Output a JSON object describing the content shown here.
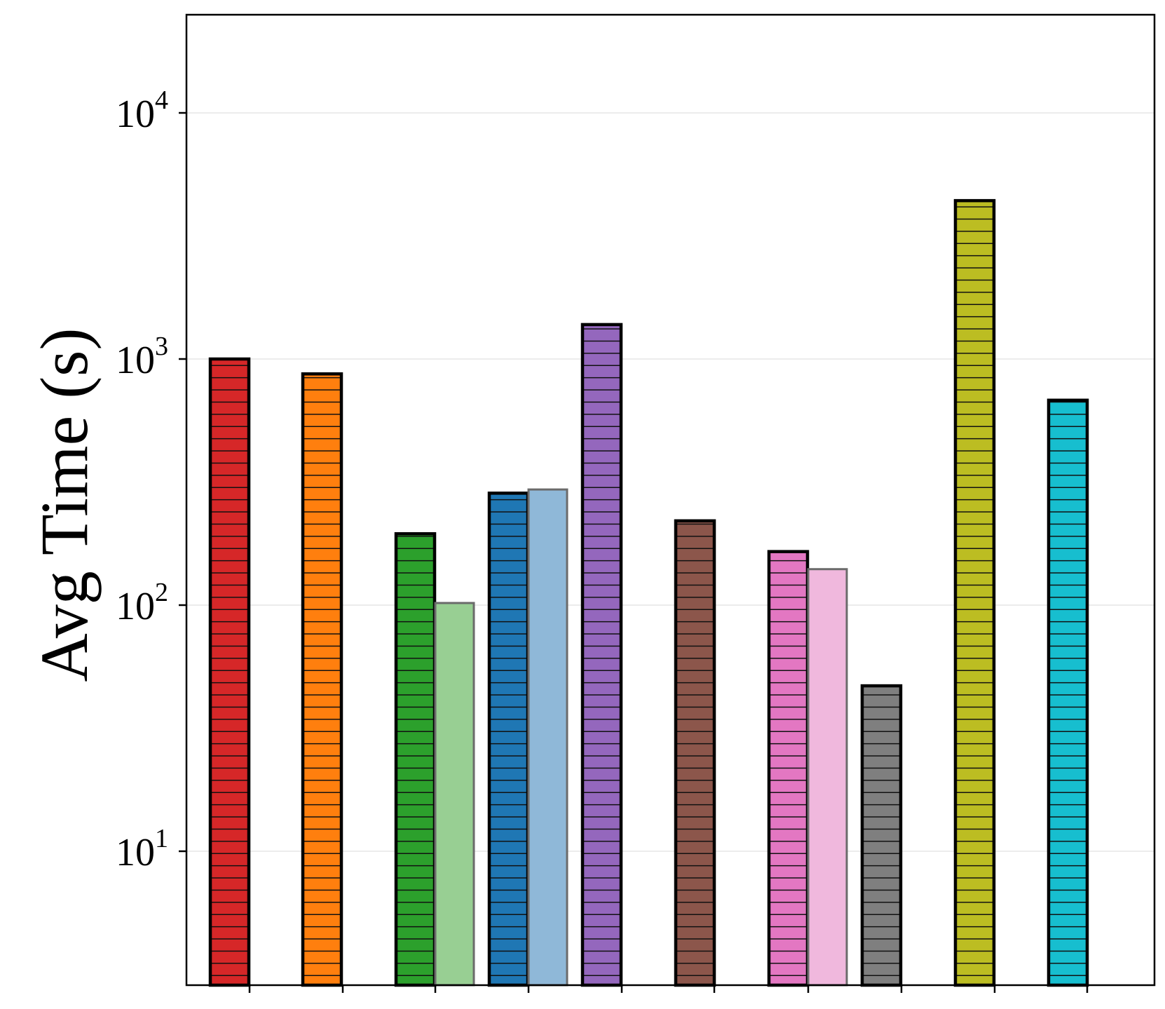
{
  "chart_data": {
    "type": "bar",
    "title": "",
    "xlabel": "",
    "ylabel": "Avg Time (s)",
    "yscale": "log",
    "ylim": [
      3.9,
      25000
    ],
    "grid": "horizontal",
    "legend": "none",
    "yticks": [
      {
        "value": 10,
        "base": "10",
        "exp": "1"
      },
      {
        "value": 100,
        "base": "10",
        "exp": "2"
      },
      {
        "value": 1000,
        "base": "10",
        "exp": "3"
      },
      {
        "value": 10000,
        "base": "10",
        "exp": "4"
      }
    ],
    "bars": [
      {
        "id": "bar-1",
        "value": 1000,
        "color": "#d62728",
        "hatched": true,
        "faded": false
      },
      {
        "id": "bar-2",
        "value": 870,
        "color": "#ff7f0e",
        "hatched": true,
        "faded": false
      },
      {
        "id": "bar-3a",
        "value": 195,
        "color": "#2ca02c",
        "hatched": true,
        "faded": false
      },
      {
        "id": "bar-3b",
        "value": 102,
        "color": "#98cf93",
        "hatched": false,
        "faded": true
      },
      {
        "id": "bar-4a",
        "value": 285,
        "color": "#1f77b4",
        "hatched": true,
        "faded": false
      },
      {
        "id": "bar-4b",
        "value": 295,
        "color": "#8fb8d8",
        "hatched": false,
        "faded": true
      },
      {
        "id": "bar-5",
        "value": 1380,
        "color": "#9467bd",
        "hatched": true,
        "faded": false
      },
      {
        "id": "bar-6",
        "value": 220,
        "color": "#8c564b",
        "hatched": true,
        "faded": false
      },
      {
        "id": "bar-7a",
        "value": 165,
        "color": "#e377c2",
        "hatched": true,
        "faded": false
      },
      {
        "id": "bar-7b",
        "value": 140,
        "color": "#f0b8dd",
        "hatched": false,
        "faded": true
      },
      {
        "id": "bar-8",
        "value": 47,
        "color": "#7f7f7f",
        "hatched": true,
        "faded": false
      },
      {
        "id": "bar-9",
        "value": 4400,
        "color": "#bcbd22",
        "hatched": true,
        "faded": false
      },
      {
        "id": "bar-10",
        "value": 680,
        "color": "#17becf",
        "hatched": true,
        "faded": false
      }
    ]
  }
}
